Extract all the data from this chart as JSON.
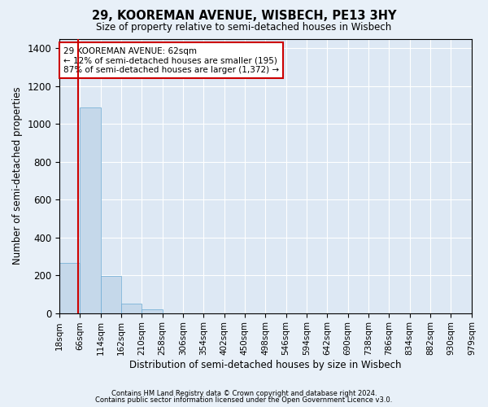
{
  "title": "29, KOOREMAN AVENUE, WISBECH, PE13 3HY",
  "subtitle": "Size of property relative to semi-detached houses in Wisbech",
  "xlabel": "Distribution of semi-detached houses by size in Wisbech",
  "ylabel": "Number of semi-detached properties",
  "footer1": "Contains HM Land Registry data © Crown copyright and database right 2024.",
  "footer2": "Contains public sector information licensed under the Open Government Licence v3.0.",
  "annotation_line1": "29 KOOREMAN AVENUE: 62sqm",
  "annotation_line2": "← 12% of semi-detached houses are smaller (195)",
  "annotation_line3": "87% of semi-detached houses are larger (1,372) →",
  "property_size": 62,
  "bin_edges": [
    18,
    66,
    114,
    162,
    210,
    258,
    306,
    354,
    402,
    450,
    498,
    546,
    594,
    642,
    690,
    738,
    786,
    834,
    882,
    930,
    979
  ],
  "bar_values": [
    265,
    1085,
    195,
    50,
    20,
    0,
    0,
    0,
    0,
    0,
    0,
    0,
    0,
    0,
    0,
    0,
    0,
    0,
    0,
    0
  ],
  "bar_color": "#c5d8ea",
  "bar_edge_color": "#6aaad4",
  "vline_color": "#cc0000",
  "annotation_box_color": "#cc0000",
  "ylim": [
    0,
    1450
  ],
  "background_color": "#e8f0f8",
  "plot_bg_color": "#dde8f4",
  "grid_color": "#ffffff",
  "tick_label_fontsize": 7.5,
  "axis_label_fontsize": 8.5,
  "title_fontsize": 10.5,
  "subtitle_fontsize": 8.5
}
